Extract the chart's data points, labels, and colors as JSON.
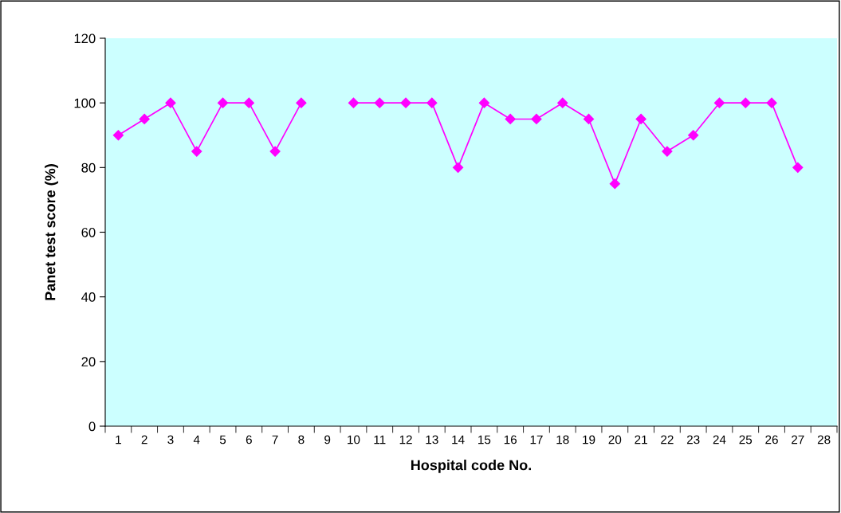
{
  "chart_data": {
    "type": "line",
    "xlabel": "Hospital code No.",
    "ylabel": "Panet test score (%)",
    "categories": [
      "1",
      "2",
      "3",
      "4",
      "5",
      "6",
      "7",
      "8",
      "9",
      "10",
      "11",
      "12",
      "13",
      "14",
      "15",
      "16",
      "17",
      "18",
      "19",
      "20",
      "21",
      "22",
      "23",
      "24",
      "25",
      "26",
      "27",
      "28"
    ],
    "series": [
      {
        "color": "#ff00ff",
        "values": [
          90,
          95,
          100,
          85,
          100,
          100,
          85,
          100,
          null,
          100,
          100,
          100,
          100,
          80,
          100,
          95,
          95,
          100,
          95,
          75,
          95,
          85,
          90,
          100,
          100,
          100,
          80,
          null
        ]
      }
    ],
    "ylim": [
      0,
      120
    ],
    "yticks": [
      0,
      20,
      40,
      60,
      80,
      100,
      120
    ],
    "grid": false,
    "marker": "diamond",
    "line_style": "solid"
  }
}
